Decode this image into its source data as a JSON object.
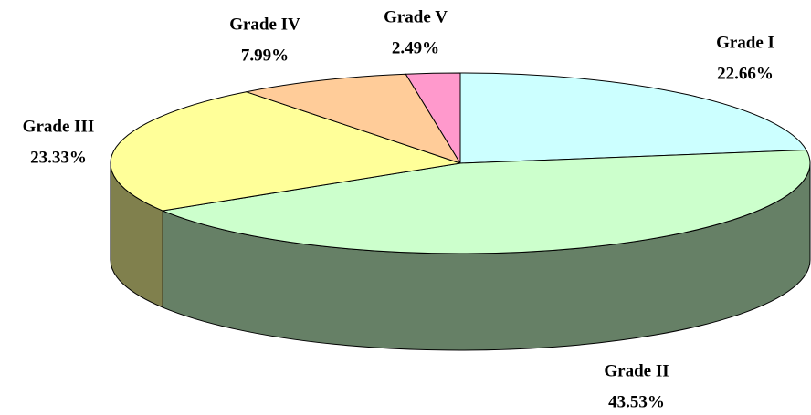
{
  "chart_data": {
    "type": "pie3d",
    "categories": [
      "Grade I",
      "Grade II",
      "Grade III",
      "Grade IV",
      "Grade V"
    ],
    "values": [
      22.66,
      43.53,
      23.33,
      7.99,
      2.49
    ],
    "value_labels": [
      "22.66%",
      "43.53%",
      "23.33%",
      "7.99%",
      "2.49%"
    ],
    "colors": [
      "#ccffff",
      "#ccffcc",
      "#ffff99",
      "#ffcc99",
      "#ff99cc"
    ]
  }
}
